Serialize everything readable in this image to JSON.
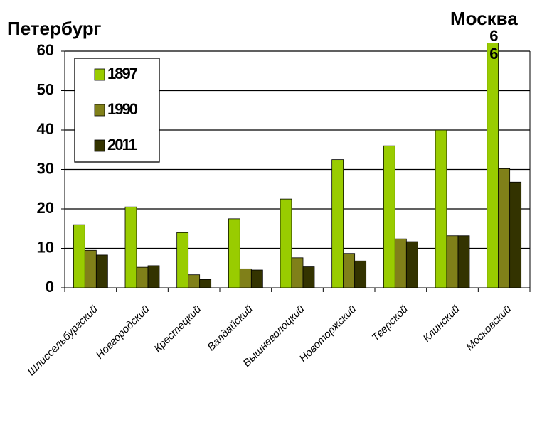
{
  "chart_data": {
    "type": "bar",
    "annotations": [
      "Петербург",
      "Москва"
    ],
    "categories": [
      "Шлиссельбургский",
      "Новгородский",
      "Крестецкий",
      "Валдайский",
      "Вышневолоцкий",
      "Новоторжский",
      "Тверской",
      "Клинский",
      "Московский"
    ],
    "series": [
      {
        "name": "1897",
        "color": "#99cc00",
        "values": [
          16,
          20.5,
          14,
          17.5,
          22.5,
          32.5,
          36,
          40,
          66
        ],
        "value_labels": [
          null,
          null,
          null,
          null,
          null,
          null,
          null,
          null,
          "66"
        ]
      },
      {
        "name": "1990",
        "color": "#808019",
        "values": [
          9.5,
          5.2,
          3.3,
          4.8,
          7.6,
          8.7,
          12.4,
          13.2,
          30.2
        ]
      },
      {
        "name": "2011",
        "color": "#333300",
        "values": [
          8.3,
          5.6,
          2.1,
          4.5,
          5.3,
          6.8,
          11.7,
          13.2,
          26.8
        ]
      }
    ],
    "ylim": [
      0,
      60
    ],
    "yticks": [
      0,
      10,
      20,
      30,
      40,
      50,
      60
    ],
    "grid": true,
    "legend": "upper left"
  }
}
